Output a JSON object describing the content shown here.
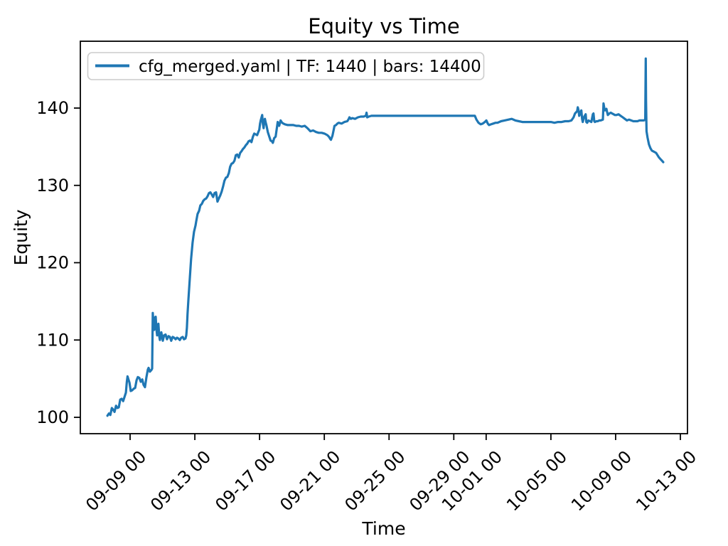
{
  "figure": {
    "title": "Equity vs Time",
    "xlabel": "Time",
    "ylabel": "Equity",
    "legend_label": "cfg_merged.yaml | TF: 1440 | bars: 14400",
    "line_color": "#1f77b4",
    "axis_color": "#000000",
    "legend_border_color": "#cccccc",
    "background_color": "#ffffff"
  },
  "chart_data": {
    "type": "line",
    "title": "Equity vs Time",
    "xlabel": "Time",
    "ylabel": "Equity",
    "grid": false,
    "legend_position": "upper left",
    "legend_entries": [
      "cfg_merged.yaml | TF: 1440 | bars: 14400"
    ],
    "line_color": "#1f77b4",
    "x_unit": "days relative to 09-09 00:00",
    "x_ticks": [
      {
        "label": "09-09 00",
        "day": 0
      },
      {
        "label": "09-13 00",
        "day": 4
      },
      {
        "label": "09-17 00",
        "day": 8
      },
      {
        "label": "09-21 00",
        "day": 12
      },
      {
        "label": "09-25 00",
        "day": 16
      },
      {
        "label": "09-29 00",
        "day": 20
      },
      {
        "label": "10-01 00",
        "day": 22
      },
      {
        "label": "10-05 00",
        "day": 26
      },
      {
        "label": "10-09 00",
        "day": 30
      },
      {
        "label": "10-13 00",
        "day": 34
      }
    ],
    "y_ticks": [
      100,
      110,
      120,
      130,
      140
    ],
    "xlim_days": [
      -3.0,
      34.45
    ],
    "ylim": [
      95.9,
      148.6
    ],
    "series": [
      {
        "name": "cfg_merged.yaml | TF: 1440 | bars: 14400",
        "points": [
          [
            -1.4,
            100.2
          ],
          [
            -1.31,
            100.5
          ],
          [
            -1.22,
            100.3
          ],
          [
            -1.13,
            101.2
          ],
          [
            -1.05,
            101.0
          ],
          [
            -0.96,
            100.7
          ],
          [
            -0.87,
            101.5
          ],
          [
            -0.78,
            101.2
          ],
          [
            -0.7,
            101.3
          ],
          [
            -0.61,
            102.3
          ],
          [
            -0.52,
            102.4
          ],
          [
            -0.43,
            102.1
          ],
          [
            -0.35,
            102.6
          ],
          [
            -0.26,
            103.2
          ],
          [
            -0.2,
            104.6
          ],
          [
            -0.16,
            105.3
          ],
          [
            -0.09,
            104.8
          ],
          [
            -0.04,
            104.5
          ],
          [
            0.04,
            103.4
          ],
          [
            0.13,
            103.5
          ],
          [
            0.22,
            103.7
          ],
          [
            0.31,
            103.8
          ],
          [
            0.4,
            104.8
          ],
          [
            0.48,
            105.2
          ],
          [
            0.57,
            105.1
          ],
          [
            0.66,
            104.6
          ],
          [
            0.75,
            104.9
          ],
          [
            0.83,
            104.2
          ],
          [
            0.92,
            103.9
          ],
          [
            1.01,
            105.2
          ],
          [
            1.1,
            106.2
          ],
          [
            1.14,
            106.4
          ],
          [
            1.22,
            105.9
          ],
          [
            1.31,
            106.1
          ],
          [
            1.36,
            106.3
          ],
          [
            1.4,
            113.5
          ],
          [
            1.45,
            111.8
          ],
          [
            1.49,
            111.3
          ],
          [
            1.53,
            112.9
          ],
          [
            1.58,
            113.0
          ],
          [
            1.62,
            111.5
          ],
          [
            1.67,
            110.6
          ],
          [
            1.71,
            111.9
          ],
          [
            1.75,
            112.1
          ],
          [
            1.8,
            110.5
          ],
          [
            1.84,
            110.0
          ],
          [
            1.93,
            111.0
          ],
          [
            2.02,
            109.9
          ],
          [
            2.1,
            110.6
          ],
          [
            2.19,
            110.7
          ],
          [
            2.28,
            110.1
          ],
          [
            2.37,
            110.5
          ],
          [
            2.46,
            110.4
          ],
          [
            2.54,
            109.9
          ],
          [
            2.63,
            110.4
          ],
          [
            2.72,
            110.3
          ],
          [
            2.81,
            110.1
          ],
          [
            2.9,
            110.3
          ],
          [
            2.98,
            110.2
          ],
          [
            3.07,
            110.0
          ],
          [
            3.16,
            110.3
          ],
          [
            3.25,
            110.4
          ],
          [
            3.33,
            110.1
          ],
          [
            3.42,
            110.2
          ],
          [
            3.47,
            110.6
          ],
          [
            3.51,
            111.6
          ],
          [
            3.55,
            113.4
          ],
          [
            3.6,
            115.2
          ],
          [
            3.69,
            118.0
          ],
          [
            3.77,
            120.5
          ],
          [
            3.86,
            122.6
          ],
          [
            3.95,
            124.0
          ],
          [
            4.04,
            124.8
          ],
          [
            4.08,
            125.3
          ],
          [
            4.17,
            126.3
          ],
          [
            4.26,
            126.7
          ],
          [
            4.34,
            127.4
          ],
          [
            4.43,
            127.6
          ],
          [
            4.52,
            128.0
          ],
          [
            4.61,
            128.2
          ],
          [
            4.7,
            128.3
          ],
          [
            4.79,
            128.6
          ],
          [
            4.87,
            129.0
          ],
          [
            4.96,
            129.1
          ],
          [
            5.05,
            128.8
          ],
          [
            5.13,
            128.5
          ],
          [
            5.22,
            129.0
          ],
          [
            5.31,
            129.1
          ],
          [
            5.4,
            127.9
          ],
          [
            5.48,
            128.3
          ],
          [
            5.57,
            128.7
          ],
          [
            5.66,
            129.2
          ],
          [
            5.75,
            129.9
          ],
          [
            5.83,
            130.6
          ],
          [
            5.92,
            131.0
          ],
          [
            6.01,
            131.1
          ],
          [
            6.1,
            131.6
          ],
          [
            6.18,
            132.4
          ],
          [
            6.27,
            132.8
          ],
          [
            6.36,
            132.9
          ],
          [
            6.45,
            133.2
          ],
          [
            6.53,
            133.9
          ],
          [
            6.62,
            134.0
          ],
          [
            6.71,
            133.6
          ],
          [
            6.8,
            134.2
          ],
          [
            6.88,
            134.4
          ],
          [
            6.97,
            134.7
          ],
          [
            7.06,
            134.9
          ],
          [
            7.15,
            135.2
          ],
          [
            7.24,
            135.4
          ],
          [
            7.32,
            135.7
          ],
          [
            7.41,
            135.8
          ],
          [
            7.5,
            135.6
          ],
          [
            7.59,
            136.3
          ],
          [
            7.67,
            136.7
          ],
          [
            7.76,
            136.6
          ],
          [
            7.85,
            136.5
          ],
          [
            7.94,
            137.0
          ],
          [
            7.98,
            137.2
          ],
          [
            8.03,
            138.0
          ],
          [
            8.07,
            138.4
          ],
          [
            8.12,
            138.8
          ],
          [
            8.16,
            139.1
          ],
          [
            8.2,
            138.0
          ],
          [
            8.25,
            137.4
          ],
          [
            8.29,
            138.3
          ],
          [
            8.33,
            138.6
          ],
          [
            8.38,
            138.1
          ],
          [
            8.42,
            137.8
          ],
          [
            8.51,
            136.9
          ],
          [
            8.6,
            136.3
          ],
          [
            8.68,
            135.8
          ],
          [
            8.77,
            135.7
          ],
          [
            8.82,
            135.5
          ],
          [
            8.9,
            136.1
          ],
          [
            8.99,
            136.3
          ],
          [
            9.08,
            137.6
          ],
          [
            9.12,
            138.2
          ],
          [
            9.21,
            137.7
          ],
          [
            9.3,
            138.4
          ],
          [
            9.39,
            138.1
          ],
          [
            9.47,
            138.0
          ],
          [
            9.56,
            137.9
          ],
          [
            9.74,
            137.8
          ],
          [
            9.91,
            137.8
          ],
          [
            10.09,
            137.8
          ],
          [
            10.26,
            137.7
          ],
          [
            10.44,
            137.7
          ],
          [
            10.61,
            137.6
          ],
          [
            10.79,
            137.7
          ],
          [
            10.96,
            137.4
          ],
          [
            11.14,
            137.0
          ],
          [
            11.31,
            137.1
          ],
          [
            11.49,
            136.9
          ],
          [
            11.66,
            136.8
          ],
          [
            11.84,
            136.8
          ],
          [
            12.01,
            136.7
          ],
          [
            12.19,
            136.5
          ],
          [
            12.28,
            136.3
          ],
          [
            12.37,
            136.0
          ],
          [
            12.41,
            135.9
          ],
          [
            12.5,
            136.4
          ],
          [
            12.58,
            137.2
          ],
          [
            12.63,
            137.7
          ],
          [
            12.72,
            137.8
          ],
          [
            12.81,
            138.0
          ],
          [
            12.89,
            138.1
          ],
          [
            13.07,
            138.0
          ],
          [
            13.24,
            138.2
          ],
          [
            13.42,
            138.3
          ],
          [
            13.51,
            138.6
          ],
          [
            13.55,
            138.8
          ],
          [
            13.64,
            138.6
          ],
          [
            13.73,
            138.7
          ],
          [
            13.9,
            138.6
          ],
          [
            14.08,
            138.8
          ],
          [
            14.25,
            138.9
          ],
          [
            14.43,
            138.9
          ],
          [
            14.56,
            139.0
          ],
          [
            14.61,
            139.4
          ],
          [
            14.65,
            138.8
          ],
          [
            14.74,
            138.9
          ],
          [
            14.91,
            139.0
          ],
          [
            15.09,
            139.0
          ],
          [
            15.5,
            139.0
          ],
          [
            16.0,
            139.0
          ],
          [
            16.5,
            139.0
          ],
          [
            17.0,
            139.0
          ],
          [
            17.5,
            139.0
          ],
          [
            18.0,
            139.0
          ],
          [
            18.5,
            139.0
          ],
          [
            19.0,
            139.0
          ],
          [
            19.5,
            139.0
          ],
          [
            20.0,
            139.0
          ],
          [
            20.5,
            139.0
          ],
          [
            21.0,
            139.0
          ],
          [
            21.3,
            139.0
          ],
          [
            21.4,
            138.5
          ],
          [
            21.53,
            138.1
          ],
          [
            21.66,
            137.9
          ],
          [
            21.79,
            138.0
          ],
          [
            21.92,
            138.2
          ],
          [
            22.01,
            138.4
          ],
          [
            22.1,
            138.0
          ],
          [
            22.18,
            137.8
          ],
          [
            22.31,
            137.9
          ],
          [
            22.44,
            138.0
          ],
          [
            22.57,
            138.1
          ],
          [
            22.7,
            138.1
          ],
          [
            22.92,
            138.3
          ],
          [
            23.14,
            138.4
          ],
          [
            23.36,
            138.5
          ],
          [
            23.58,
            138.6
          ],
          [
            23.8,
            138.4
          ],
          [
            24.02,
            138.3
          ],
          [
            24.24,
            138.2
          ],
          [
            24.46,
            138.2
          ],
          [
            24.68,
            138.2
          ],
          [
            24.9,
            138.2
          ],
          [
            25.12,
            138.2
          ],
          [
            25.34,
            138.2
          ],
          [
            25.56,
            138.2
          ],
          [
            25.78,
            138.2
          ],
          [
            26.0,
            138.2
          ],
          [
            26.22,
            138.1
          ],
          [
            26.44,
            138.2
          ],
          [
            26.66,
            138.2
          ],
          [
            26.88,
            138.3
          ],
          [
            27.1,
            138.3
          ],
          [
            27.27,
            138.4
          ],
          [
            27.4,
            138.8
          ],
          [
            27.49,
            139.3
          ],
          [
            27.62,
            139.6
          ],
          [
            27.66,
            140.1
          ],
          [
            27.71,
            139.7
          ],
          [
            27.75,
            139.0
          ],
          [
            27.84,
            139.5
          ],
          [
            27.88,
            139.7
          ],
          [
            27.93,
            138.6
          ],
          [
            27.97,
            138.2
          ],
          [
            28.06,
            138.9
          ],
          [
            28.15,
            139.2
          ],
          [
            28.19,
            138.2
          ],
          [
            28.24,
            138.1
          ],
          [
            28.32,
            138.4
          ],
          [
            28.41,
            138.3
          ],
          [
            28.5,
            138.2
          ],
          [
            28.59,
            139.2
          ],
          [
            28.63,
            139.3
          ],
          [
            28.68,
            138.3
          ],
          [
            28.72,
            138.2
          ],
          [
            28.81,
            138.3
          ],
          [
            28.9,
            138.3
          ],
          [
            28.99,
            138.4
          ],
          [
            29.08,
            138.4
          ],
          [
            29.21,
            138.5
          ],
          [
            29.25,
            140.6
          ],
          [
            29.3,
            140.0
          ],
          [
            29.34,
            139.7
          ],
          [
            29.43,
            139.9
          ],
          [
            29.47,
            139.5
          ],
          [
            29.52,
            139.1
          ],
          [
            29.61,
            139.3
          ],
          [
            29.7,
            139.4
          ],
          [
            29.78,
            139.3
          ],
          [
            29.87,
            139.2
          ],
          [
            29.96,
            139.1
          ],
          [
            30.05,
            139.1
          ],
          [
            30.18,
            139.2
          ],
          [
            30.31,
            139.0
          ],
          [
            30.44,
            138.8
          ],
          [
            30.57,
            138.6
          ],
          [
            30.7,
            138.4
          ],
          [
            30.83,
            138.5
          ],
          [
            30.96,
            138.4
          ],
          [
            31.09,
            138.3
          ],
          [
            31.22,
            138.3
          ],
          [
            31.35,
            138.3
          ],
          [
            31.48,
            138.4
          ],
          [
            31.61,
            138.4
          ],
          [
            31.74,
            138.4
          ],
          [
            31.83,
            138.5
          ],
          [
            31.86,
            146.4
          ],
          [
            31.88,
            141.0
          ],
          [
            31.91,
            137.0
          ],
          [
            31.97,
            136.2
          ],
          [
            32.06,
            135.3
          ],
          [
            32.15,
            134.8
          ],
          [
            32.24,
            134.5
          ],
          [
            32.33,
            134.4
          ],
          [
            32.42,
            134.3
          ],
          [
            32.5,
            134.2
          ],
          [
            32.59,
            133.9
          ],
          [
            32.68,
            133.6
          ],
          [
            32.77,
            133.4
          ],
          [
            32.86,
            133.2
          ],
          [
            32.94,
            133.0
          ]
        ]
      }
    ]
  }
}
